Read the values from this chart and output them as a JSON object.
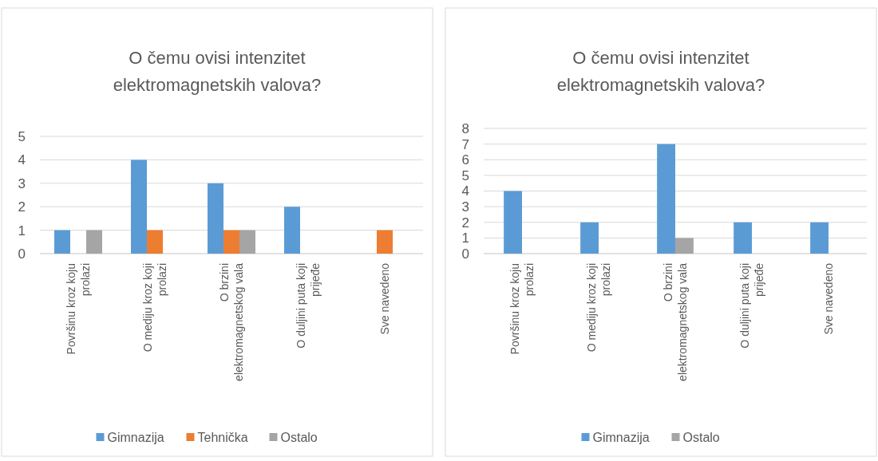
{
  "chart_data": [
    {
      "type": "bar",
      "title": "O čemu ovisi intenzitet elektromagnetskih valova?",
      "categories": [
        "Površinu kroz koju prolazi",
        "O mediju kroz koji prolazi",
        "O brzini elektromagnetskog vala",
        "O duljini puta koji prijeđe",
        "Sve navedeno"
      ],
      "series": [
        {
          "name": "Gimnazija",
          "color": "#5b9bd5",
          "values": [
            1,
            4,
            3,
            2,
            0
          ]
        },
        {
          "name": "Tehnička",
          "color": "#ed7d31",
          "values": [
            0,
            1,
            1,
            0,
            1
          ]
        },
        {
          "name": "Ostalo",
          "color": "#a5a5a5",
          "values": [
            1,
            0,
            1,
            0,
            0
          ]
        }
      ],
      "ylim": [
        0,
        5
      ],
      "yticks": [
        0,
        1,
        2,
        3,
        4,
        5
      ],
      "grid": "y",
      "legend": "bottom"
    },
    {
      "type": "bar",
      "title": "O čemu ovisi intenzitet elektromagnetskih valova?",
      "categories": [
        "Površinu kroz koju prolazi",
        "O mediju kroz koji prolazi",
        "O brzini elektromagnetskog vala",
        "O duljini puta koji prijeđe",
        "Sve navedeno"
      ],
      "series": [
        {
          "name": "Gimnazija",
          "color": "#5b9bd5",
          "values": [
            4,
            2,
            7,
            2,
            2
          ]
        },
        {
          "name": "Ostalo",
          "color": "#a5a5a5",
          "values": [
            0,
            0,
            1,
            0,
            0
          ]
        }
      ],
      "ylim": [
        0,
        8
      ],
      "yticks": [
        0,
        1,
        2,
        3,
        4,
        5,
        6,
        7,
        8
      ],
      "grid": "y",
      "legend": "bottom"
    }
  ]
}
